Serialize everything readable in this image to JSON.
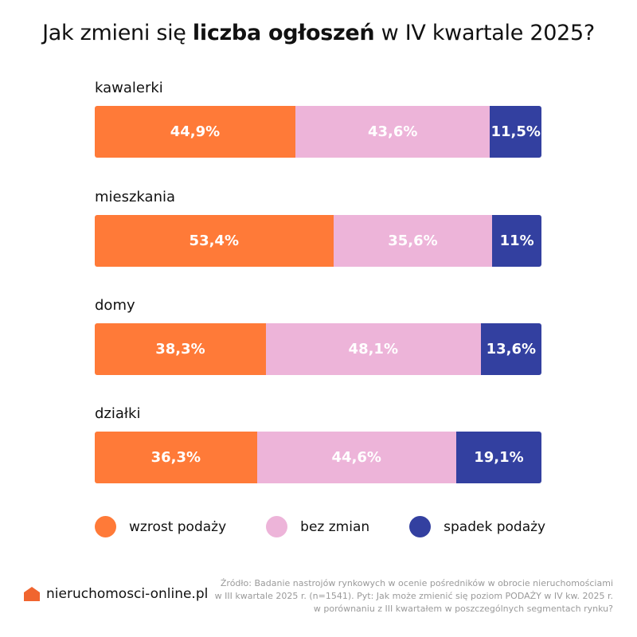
{
  "chart_data": {
    "type": "bar",
    "stacked": true,
    "orientation": "horizontal",
    "title_parts": [
      "Jak zmieni się ",
      "liczba ogłoszeń",
      " w IV kwartale 2025?"
    ],
    "categories": [
      "kawalerki",
      "mieszkania",
      "domy",
      "działki"
    ],
    "series": [
      {
        "name": "wzrost podaży",
        "color": "#FF7A38",
        "values": [
          44.9,
          53.4,
          38.3,
          36.3
        ],
        "labels": [
          "44,9%",
          "53,4%",
          "38,3%",
          "36,3%"
        ]
      },
      {
        "name": "bez zmian",
        "color": "#EDB4D9",
        "values": [
          43.6,
          35.6,
          48.1,
          44.6
        ],
        "labels": [
          "43,6%",
          "35,6%",
          "48,1%",
          "44,6%"
        ]
      },
      {
        "name": "spadek podaży",
        "color": "#3340A0",
        "values": [
          11.5,
          11,
          13.6,
          19.1
        ],
        "labels": [
          "11,5%",
          "11%",
          "13,6%",
          "19,1%"
        ]
      }
    ],
    "legend_position": "bottom",
    "grid": false
  },
  "footer": {
    "logo_text": "nieruchomosci-online.pl",
    "logo_color": "#F0652F",
    "source_lines": [
      "Źródło: Badanie nastrojów rynkowych w ocenie pośredników w obrocie nieruchomościami",
      "w III kwartale 2025 r. (n=1541). Pyt: Jak może zmienić się poziom PODAŻY w IV kw. 2025 r.",
      "w porównaniu z III kwartałem w poszczególnych segmentach rynku?"
    ]
  }
}
